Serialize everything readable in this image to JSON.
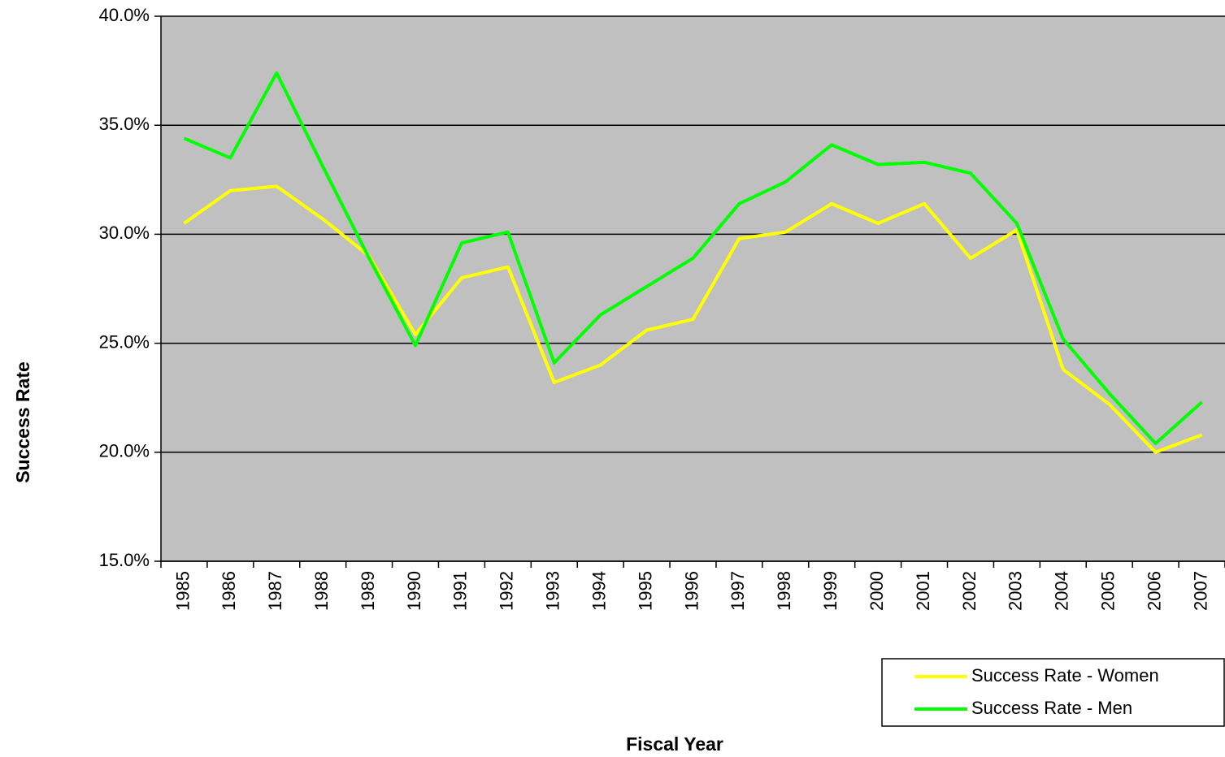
{
  "chart_data": {
    "type": "line",
    "x_label": "Fiscal Year",
    "y_label": "Success Rate",
    "categories": [
      "1985",
      "1986",
      "1987",
      "1988",
      "1989",
      "1990",
      "1991",
      "1992",
      "1993",
      "1994",
      "1995",
      "1996",
      "1997",
      "1998",
      "1999",
      "2000",
      "2001",
      "2002",
      "2003",
      "2004",
      "2005",
      "2006",
      "2007"
    ],
    "series": [
      {
        "name": "Success Rate - Women",
        "color": "#ffff00",
        "values": [
          30.5,
          32.0,
          32.2,
          30.7,
          29.0,
          25.4,
          28.0,
          28.5,
          23.2,
          24.0,
          25.6,
          26.1,
          29.8,
          30.1,
          31.4,
          30.5,
          31.4,
          28.9,
          30.2,
          23.8,
          22.2,
          20.0,
          20.8
        ]
      },
      {
        "name": "Success Rate - Men",
        "color": "#00ff00",
        "values": [
          34.4,
          33.5,
          37.4,
          33.1,
          28.9,
          24.9,
          29.6,
          30.1,
          24.1,
          26.3,
          27.6,
          28.9,
          31.4,
          32.4,
          34.1,
          33.2,
          33.3,
          32.8,
          30.5,
          25.2,
          22.7,
          20.4,
          22.3
        ]
      }
    ],
    "ylim": [
      15,
      40
    ],
    "yticks": [
      {
        "value": 15,
        "label": "15.0%"
      },
      {
        "value": 20,
        "label": "20.0%"
      },
      {
        "value": 25,
        "label": "25.0%"
      },
      {
        "value": 30,
        "label": "30.0%"
      },
      {
        "value": 35,
        "label": "35.0%"
      },
      {
        "value": 40,
        "label": "40.0%"
      }
    ],
    "grid": true,
    "legend": "bottom-right",
    "plot_background": "#c0c0c0"
  }
}
